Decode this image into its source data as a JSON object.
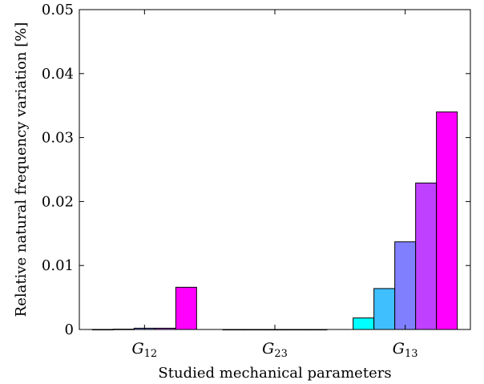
{
  "chart_data": {
    "type": "bar",
    "xlabel": "Studied mechanical parameters",
    "ylabel": "Relative natural frequency variation [%]",
    "ylim": [
      0,
      0.05
    ],
    "yticks": [
      "0",
      "0.01",
      "0.02",
      "0.03",
      "0.04",
      "0.05"
    ],
    "grid": false,
    "categories": [
      {
        "main": "G",
        "sub": "12"
      },
      {
        "main": "G",
        "sub": "23"
      },
      {
        "main": "G",
        "sub": "13"
      }
    ],
    "bar_colors": [
      "#00ffff",
      "#40bfff",
      "#8080ff",
      "#bf40ff",
      "#ff00ff"
    ],
    "groups": [
      [
        1e-05,
        5e-05,
        0.0002,
        0.0002,
        0.0066
      ],
      [
        5e-06,
        5e-06,
        5e-06,
        5e-06,
        5e-06
      ],
      [
        0.0018,
        0.0064,
        0.0137,
        0.0229,
        0.034
      ]
    ]
  }
}
